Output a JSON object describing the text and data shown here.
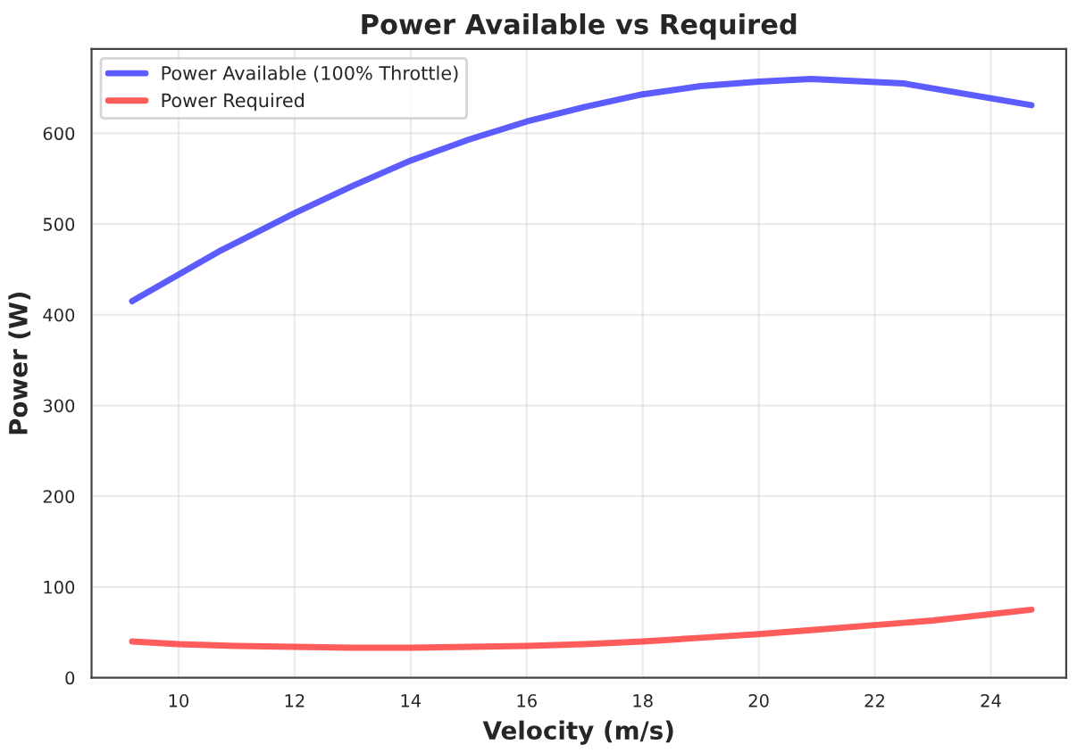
{
  "chart_data": {
    "type": "line",
    "title": "Power Available vs Required",
    "xlabel": "Velocity (m/s)",
    "ylabel": "Power (W)",
    "series": [
      {
        "name": "Power Available (100% Throttle)",
        "color": "#3333ff",
        "x": [
          9.2,
          10.7,
          12,
          13,
          14,
          15,
          16,
          17,
          18,
          19,
          20,
          20.9,
          22.5,
          24.7
        ],
        "values": [
          415,
          470,
          512,
          542,
          570,
          593,
          613,
          629,
          643,
          652,
          657,
          660,
          655,
          631
        ]
      },
      {
        "name": "Power Required",
        "color": "#ff3333",
        "x": [
          9.2,
          10,
          11,
          12,
          13,
          14,
          15,
          16,
          17,
          18,
          19,
          20,
          21,
          22,
          23,
          24.7
        ],
        "values": [
          40,
          37,
          35,
          34,
          33,
          33,
          34,
          35,
          37,
          40,
          44,
          48,
          53,
          58,
          63,
          75
        ]
      }
    ],
    "xlim": [
      8.5,
      25.3
    ],
    "xticks": [
      10,
      12,
      14,
      16,
      18,
      20,
      22,
      24
    ],
    "ylim": [
      0,
      693
    ],
    "yticks": [
      0,
      100,
      200,
      300,
      400,
      500,
      600
    ],
    "grid": true,
    "legend": "top left",
    "line_style": "solid"
  }
}
